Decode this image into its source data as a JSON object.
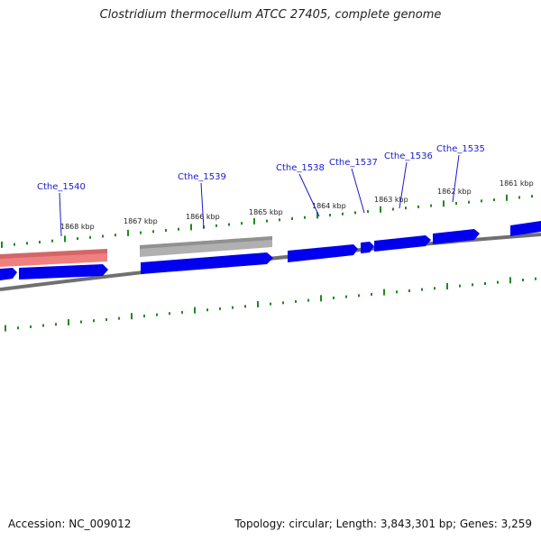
{
  "title": "Clostridium thermocellum ATCC 27405, complete genome",
  "footer": {
    "accession": "Accession: NC_009012",
    "summary": "Topology: circular; Length: 3,843,301 bp; Genes: 3,259"
  },
  "colors": {
    "forward_gene": "#0000ee",
    "highlight_gene": "#f08080",
    "pseudo_gene": "#b0b0b0",
    "backbone": "#707070",
    "tick": "#1f8a1f",
    "gene_label": "#1a1acc",
    "kbp_label": "#222222"
  },
  "scale_labels": [
    "1868 kbp",
    "1867 kbp",
    "1866 kbp",
    "1865 kbp",
    "1864 kbp",
    "1863 kbp",
    "1862 kbp",
    "1861 kbp"
  ],
  "gene_labels": [
    "Cthe_1540",
    "Cthe_1539",
    "Cthe_1538",
    "Cthe_1537",
    "Cthe_1536",
    "Cthe_1535"
  ]
}
